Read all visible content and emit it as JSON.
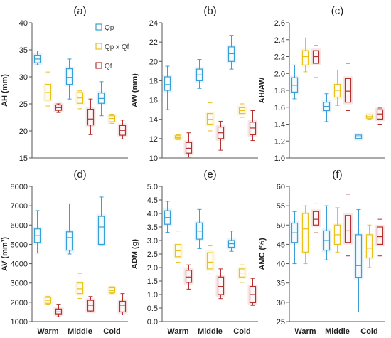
{
  "legend": [
    {
      "label": "Qp",
      "color": "#3a9fd4"
    },
    {
      "label": "Qp x Qf",
      "color": "#e8c21a"
    },
    {
      "label": "Qf",
      "color": "#b53030"
    }
  ],
  "chart_data": [
    {
      "type": "boxplot",
      "title": "(a)",
      "ylabel": "AH (mm)",
      "ylim": [
        15,
        40
      ],
      "yticks": [
        15,
        20,
        25,
        30,
        35,
        40
      ],
      "categories": [
        "Warm",
        "Middle",
        "Cold"
      ],
      "series": [
        {
          "name": "Qp",
          "color": "#3a9fd4",
          "boxes": [
            {
              "min": 32.2,
              "q1": 32.6,
              "median": 33.3,
              "q3": 34.0,
              "max": 34.8
            },
            {
              "min": 25.9,
              "q1": 28.6,
              "median": 29.9,
              "q3": 31.5,
              "max": 33.3
            },
            {
              "min": 22.8,
              "q1": 25.1,
              "median": 26.0,
              "q3": 27.0,
              "max": 29.1
            }
          ]
        },
        {
          "name": "Qp x Qf",
          "color": "#e8c21a",
          "boxes": [
            {
              "min": 24.6,
              "q1": 25.7,
              "median": 27.1,
              "q3": 28.6,
              "max": 30.9
            },
            {
              "min": 24.1,
              "q1": 25.1,
              "median": 26.1,
              "q3": 27.1,
              "max": 27.4
            },
            {
              "min": 21.4,
              "q1": 21.7,
              "median": 22.3,
              "q3": 22.8,
              "max": 23.1
            }
          ]
        },
        {
          "name": "Qf",
          "color": "#b53030",
          "boxes": [
            {
              "min": 23.4,
              "q1": 23.8,
              "median": 24.3,
              "q3": 24.8,
              "max": 25.0
            },
            {
              "min": 19.3,
              "q1": 21.1,
              "median": 22.2,
              "q3": 24.0,
              "max": 25.9
            },
            {
              "min": 18.5,
              "q1": 19.2,
              "median": 20.1,
              "q3": 21.0,
              "max": 22.0
            }
          ]
        }
      ]
    },
    {
      "type": "boxplot",
      "title": "(b)",
      "ylabel": "AW (mm)",
      "ylim": [
        10,
        24
      ],
      "yticks": [
        10,
        12,
        14,
        16,
        18,
        20,
        22,
        24
      ],
      "categories": [
        "Warm",
        "Middle",
        "Cold"
      ],
      "series": [
        {
          "name": "Qp",
          "color": "#3a9fd4",
          "boxes": [
            {
              "min": 15.0,
              "q1": 17.0,
              "median": 17.6,
              "q3": 18.4,
              "max": 19.5
            },
            {
              "min": 17.2,
              "q1": 18.0,
              "median": 18.6,
              "q3": 19.2,
              "max": 20.2
            },
            {
              "min": 19.2,
              "q1": 20.0,
              "median": 20.8,
              "q3": 21.5,
              "max": 22.7
            }
          ]
        },
        {
          "name": "Qp x Qf",
          "color": "#e8c21a",
          "boxes": [
            {
              "min": 11.9,
              "q1": 12.0,
              "median": 12.1,
              "q3": 12.3,
              "max": 12.4
            },
            {
              "min": 12.8,
              "q1": 13.5,
              "median": 14.0,
              "q3": 14.6,
              "max": 15.7
            },
            {
              "min": 14.2,
              "q1": 14.6,
              "median": 14.9,
              "q3": 15.2,
              "max": 15.6
            }
          ]
        },
        {
          "name": "Qf",
          "color": "#b53030",
          "boxes": [
            {
              "min": 10.1,
              "q1": 10.5,
              "median": 11.0,
              "q3": 11.6,
              "max": 12.6
            },
            {
              "min": 10.8,
              "q1": 12.0,
              "median": 12.6,
              "q3": 13.2,
              "max": 13.8
            },
            {
              "min": 11.8,
              "q1": 12.4,
              "median": 13.1,
              "q3": 13.7,
              "max": 14.9
            }
          ]
        }
      ]
    },
    {
      "type": "boxplot",
      "title": "(c)",
      "ylabel": "AH/AW",
      "ylim": [
        1.0,
        2.6
      ],
      "yticks": [
        1.0,
        1.2,
        1.4,
        1.6,
        1.8,
        2.0,
        2.2,
        2.4,
        2.6
      ],
      "categories": [
        "Warm",
        "Middle",
        "Cold"
      ],
      "series": [
        {
          "name": "Qp",
          "color": "#3a9fd4",
          "boxes": [
            {
              "min": 1.7,
              "q1": 1.78,
              "median": 1.86,
              "q3": 1.95,
              "max": 2.1
            },
            {
              "min": 1.43,
              "q1": 1.56,
              "median": 1.61,
              "q3": 1.66,
              "max": 1.76
            },
            {
              "min": 1.23,
              "q1": 1.23,
              "median": 1.25,
              "q3": 1.27,
              "max": 1.27
            }
          ]
        },
        {
          "name": "Qp x Qf",
          "color": "#e8c21a",
          "boxes": [
            {
              "min": 2.02,
              "q1": 2.1,
              "median": 2.2,
              "q3": 2.27,
              "max": 2.42
            },
            {
              "min": 1.62,
              "q1": 1.72,
              "median": 1.8,
              "q3": 1.87,
              "max": 2.04
            },
            {
              "min": 1.46,
              "q1": 1.47,
              "median": 1.49,
              "q3": 1.51,
              "max": 1.51
            }
          ]
        },
        {
          "name": "Qf",
          "color": "#b53030",
          "boxes": [
            {
              "min": 1.95,
              "q1": 2.12,
              "median": 2.2,
              "q3": 2.27,
              "max": 2.33
            },
            {
              "min": 1.56,
              "q1": 1.66,
              "median": 1.79,
              "q3": 1.94,
              "max": 2.12
            },
            {
              "min": 1.4,
              "q1": 1.46,
              "median": 1.52,
              "q3": 1.57,
              "max": 1.59
            }
          ]
        }
      ]
    },
    {
      "type": "boxplot",
      "title": "(d)",
      "ylabel": "AV (mm³)",
      "ylim": [
        1000,
        8000
      ],
      "yticks": [
        1000,
        2000,
        3000,
        4000,
        5000,
        6000,
        7000,
        8000
      ],
      "categories": [
        "Warm",
        "Middle",
        "Cold"
      ],
      "series": [
        {
          "name": "Qp",
          "color": "#3a9fd4",
          "boxes": [
            {
              "min": 4550,
              "q1": 5100,
              "median": 5450,
              "q3": 5800,
              "max": 6750
            },
            {
              "min": 4500,
              "q1": 4700,
              "median": 5350,
              "q3": 5650,
              "max": 7100
            },
            {
              "min": 4950,
              "q1": 5000,
              "median": 5900,
              "q3": 6450,
              "max": 7450
            }
          ]
        },
        {
          "name": "Qp x Qf",
          "color": "#e8c21a",
          "boxes": [
            {
              "min": 1900,
              "q1": 1950,
              "median": 2100,
              "q3": 2250,
              "max": 2300
            },
            {
              "min": 2200,
              "q1": 2450,
              "median": 2700,
              "q3": 3000,
              "max": 3500
            },
            {
              "min": 2450,
              "q1": 2500,
              "median": 2600,
              "q3": 2750,
              "max": 2800
            }
          ]
        },
        {
          "name": "Qf",
          "color": "#b53030",
          "boxes": [
            {
              "min": 1250,
              "q1": 1400,
              "median": 1500,
              "q3": 1650,
              "max": 1900
            },
            {
              "min": 1500,
              "q1": 1550,
              "median": 1850,
              "q3": 2100,
              "max": 2300
            },
            {
              "min": 1350,
              "q1": 1500,
              "median": 1850,
              "q3": 2050,
              "max": 2450
            }
          ]
        }
      ]
    },
    {
      "type": "boxplot",
      "title": "(e)",
      "ylabel": "ADM (g)",
      "ylim": [
        0.0,
        5.0
      ],
      "yticks": [
        0.0,
        0.5,
        1.0,
        1.5,
        2.0,
        2.5,
        3.0,
        3.5,
        4.0,
        4.5,
        5.0
      ],
      "categories": [
        "Warm",
        "Middle",
        "Cold"
      ],
      "series": [
        {
          "name": "Qp",
          "color": "#3a9fd4",
          "boxes": [
            {
              "min": 3.3,
              "q1": 3.6,
              "median": 3.85,
              "q3": 4.1,
              "max": 4.45
            },
            {
              "min": 2.7,
              "q1": 3.05,
              "median": 3.35,
              "q3": 3.65,
              "max": 4.15
            },
            {
              "min": 2.6,
              "q1": 2.75,
              "median": 2.88,
              "q3": 3.0,
              "max": 3.35
            }
          ]
        },
        {
          "name": "Qp x Qf",
          "color": "#e8c21a",
          "boxes": [
            {
              "min": 2.2,
              "q1": 2.4,
              "median": 2.62,
              "q3": 2.85,
              "max": 3.35
            },
            {
              "min": 1.8,
              "q1": 1.95,
              "median": 2.2,
              "q3": 2.55,
              "max": 2.8
            },
            {
              "min": 1.45,
              "q1": 1.65,
              "median": 1.8,
              "q3": 1.95,
              "max": 2.1
            }
          ]
        },
        {
          "name": "Qf",
          "color": "#b53030",
          "boxes": [
            {
              "min": 1.2,
              "q1": 1.45,
              "median": 1.65,
              "q3": 1.9,
              "max": 2.1
            },
            {
              "min": 0.85,
              "q1": 1.0,
              "median": 1.3,
              "q3": 1.65,
              "max": 1.95
            },
            {
              "min": 0.6,
              "q1": 0.7,
              "median": 1.0,
              "q3": 1.3,
              "max": 1.6
            }
          ]
        }
      ]
    },
    {
      "type": "boxplot",
      "title": "(f)",
      "ylabel": "AMC (%)",
      "ylim": [
        25,
        60
      ],
      "yticks": [
        25,
        30,
        35,
        40,
        45,
        50,
        55,
        60
      ],
      "categories": [
        "Warm",
        "Middle",
        "Cold"
      ],
      "series": [
        {
          "name": "Qp",
          "color": "#3a9fd4",
          "boxes": [
            {
              "min": 40.0,
              "q1": 45.5,
              "median": 48.0,
              "q3": 50.5,
              "max": 53.5
            },
            {
              "min": 41.0,
              "q1": 43.5,
              "median": 46.0,
              "q3": 48.5,
              "max": 55.0
            },
            {
              "min": 27.5,
              "q1": 36.5,
              "median": 39.5,
              "q3": 47.5,
              "max": 54.0
            }
          ]
        },
        {
          "name": "Qp x Qf",
          "color": "#e8c21a",
          "boxes": [
            {
              "min": 40.0,
              "q1": 43.0,
              "median": 49.0,
              "q3": 53.0,
              "max": 55.0
            },
            {
              "min": 43.0,
              "q1": 45.0,
              "median": 47.5,
              "q3": 50.0,
              "max": 54.5
            },
            {
              "min": 39.0,
              "q1": 41.5,
              "median": 44.0,
              "q3": 47.5,
              "max": 50.0
            }
          ]
        },
        {
          "name": "Qf",
          "color": "#b53030",
          "boxes": [
            {
              "min": 48.0,
              "q1": 50.0,
              "median": 51.5,
              "q3": 53.5,
              "max": 55.5
            },
            {
              "min": 42.0,
              "q1": 45.5,
              "median": 48.5,
              "q3": 52.5,
              "max": 58.0
            },
            {
              "min": 42.0,
              "q1": 45.0,
              "median": 47.0,
              "q3": 49.5,
              "max": 51.5
            }
          ]
        }
      ]
    }
  ]
}
